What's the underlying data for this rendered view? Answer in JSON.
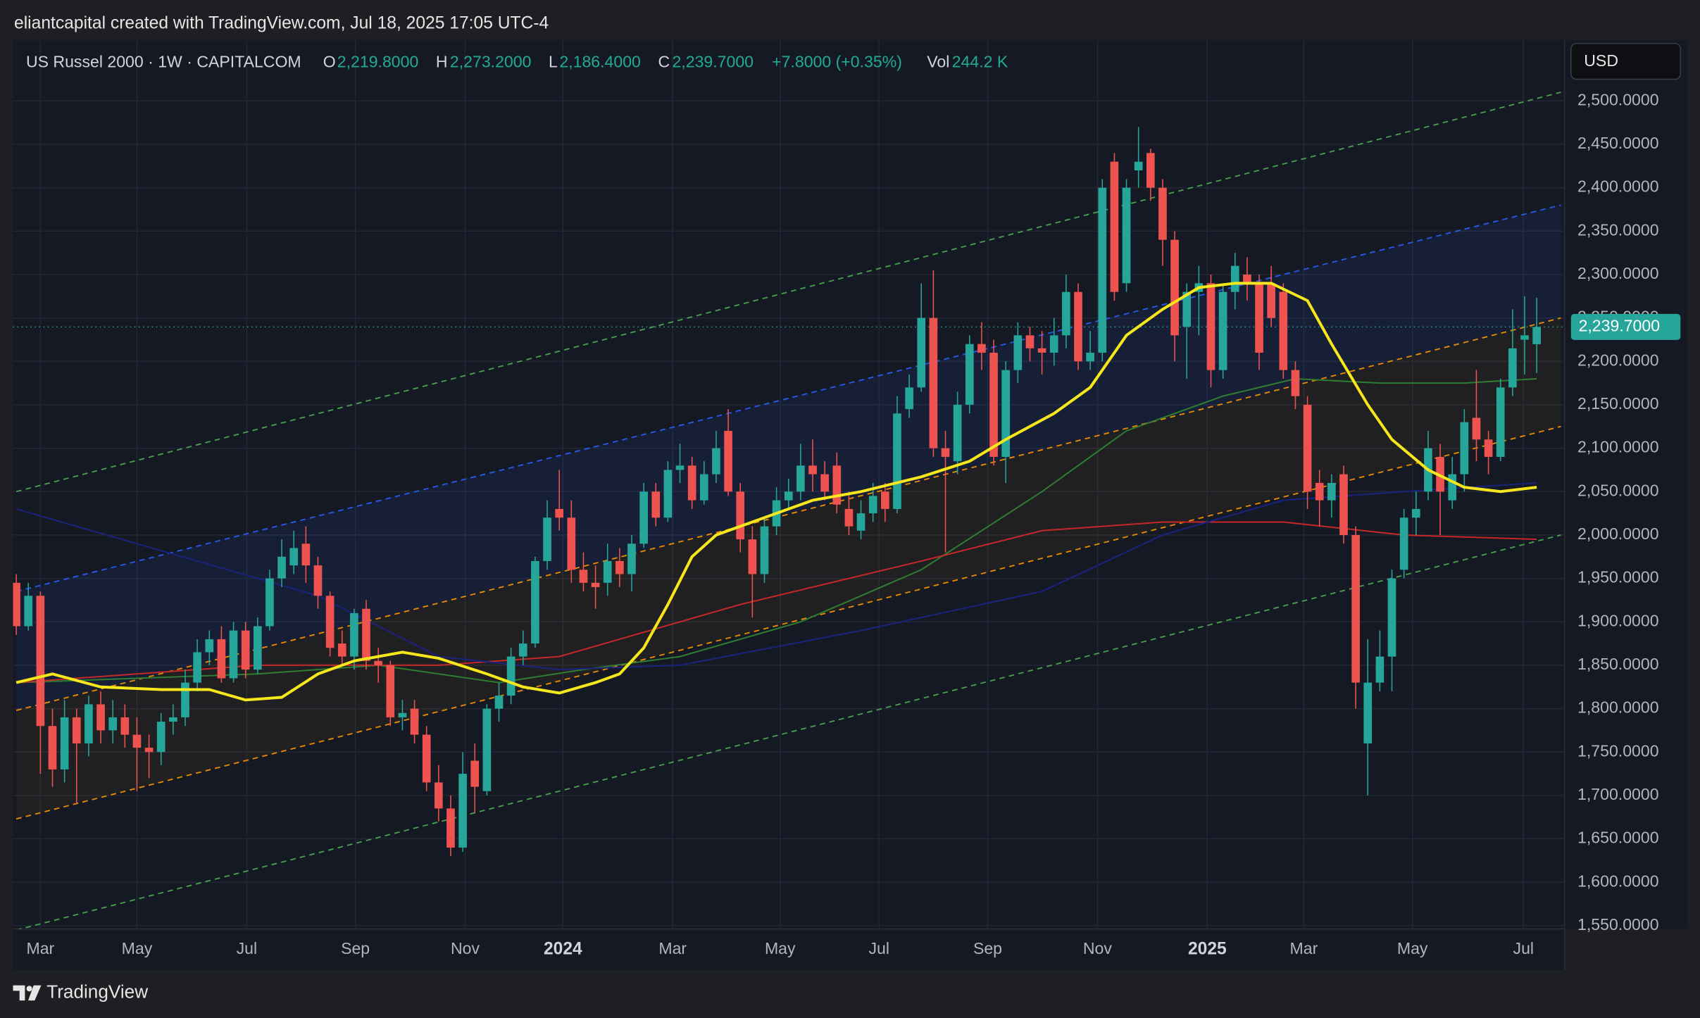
{
  "header": {
    "credit": "eliantcapital created with TradingView.com, Jul 18, 2025 17:05 UTC-4"
  },
  "legend": {
    "symbol": "US Russel 2000 · 1W · CAPITALCOM",
    "items": [
      {
        "key": "O",
        "value": "2,219.8000"
      },
      {
        "key": "H",
        "value": "2,273.2000"
      },
      {
        "key": "L",
        "value": "2,186.4000"
      },
      {
        "key": "C",
        "value": "2,239.7000"
      }
    ],
    "change": "+7.8000 (+0.35%)",
    "vol_key": "Vol",
    "vol": "244.2 K"
  },
  "currency": "USD",
  "footer": {
    "brand": "TradingView"
  },
  "chart_data": {
    "type": "candlestick",
    "up_color": "#26a69a",
    "down_color": "#ef5350",
    "xlim": [
      -0.27,
      128.3
    ],
    "ylim": [
      1546.2,
      2569.9
    ],
    "grid": true,
    "xticks": [
      {
        "value": 2.0,
        "label": "Mar"
      },
      {
        "value": 10.0,
        "label": "May"
      },
      {
        "value": 19.1,
        "label": "Jul"
      },
      {
        "value": 28.1,
        "label": "Sep"
      },
      {
        "value": 37.2,
        "label": "Nov"
      },
      {
        "value": 45.3,
        "label": "2024"
      },
      {
        "value": 54.4,
        "label": "Mar"
      },
      {
        "value": 63.3,
        "label": "May"
      },
      {
        "value": 71.5,
        "label": "Jul"
      },
      {
        "value": 80.5,
        "label": "Sep"
      },
      {
        "value": 89.6,
        "label": "Nov"
      },
      {
        "value": 98.7,
        "label": "2025"
      },
      {
        "value": 106.7,
        "label": "Mar"
      },
      {
        "value": 115.7,
        "label": "May"
      },
      {
        "value": 124.9,
        "label": "Jul"
      }
    ],
    "yticks": [
      {
        "value": 1550,
        "label": "1,550.0000"
      },
      {
        "value": 1600,
        "label": "1,600.0000"
      },
      {
        "value": 1650,
        "label": "1,650.0000"
      },
      {
        "value": 1700,
        "label": "1,700.0000"
      },
      {
        "value": 1750,
        "label": "1,750.0000"
      },
      {
        "value": 1800,
        "label": "1,800.0000"
      },
      {
        "value": 1850,
        "label": "1,850.0000"
      },
      {
        "value": 1900,
        "label": "1,900.0000"
      },
      {
        "value": 1950,
        "label": "1,950.0000"
      },
      {
        "value": 2000,
        "label": "2,000.0000"
      },
      {
        "value": 2050,
        "label": "2,050.0000"
      },
      {
        "value": 2100,
        "label": "2,100.0000"
      },
      {
        "value": 2150,
        "label": "2,150.0000"
      },
      {
        "value": 2200,
        "label": "2,200.0000"
      },
      {
        "value": 2250,
        "label": "2,250.0000"
      },
      {
        "value": 2300,
        "label": "2,300.0000"
      },
      {
        "value": 2350,
        "label": "2,350.0000"
      },
      {
        "value": 2400,
        "label": "2,400.0000"
      },
      {
        "value": 2450,
        "label": "2,450.0000"
      },
      {
        "value": 2500,
        "label": "2,500.0000"
      }
    ],
    "ohlc": {
      "open": [
        1945,
        1895,
        1930,
        1780,
        1730,
        1790,
        1760,
        1805,
        1775,
        1790,
        1770,
        1755,
        1750,
        1785,
        1790,
        1830,
        1865,
        1880,
        1835,
        1890,
        1845,
        1895,
        1950,
        1965,
        1990,
        1965,
        1930,
        1875,
        1860,
        1915,
        1855,
        1850,
        1790,
        1800,
        1770,
        1715,
        1685,
        1640,
        1740,
        1705,
        1800,
        1815,
        1860,
        1875,
        1970,
        2030,
        2020,
        1960,
        1945,
        1945,
        1970,
        1955,
        1990,
        2050,
        2020,
        2075,
        2080,
        2040,
        2070,
        2120,
        2050,
        1995,
        1955,
        2010,
        2040,
        2050,
        2080,
        2070,
        2080,
        2030,
        2005,
        2025,
        2050,
        2030,
        2145,
        2170,
        2250,
        2100,
        2085,
        2150,
        2220,
        2210,
        2090,
        2190,
        2230,
        2215,
        2210,
        2230,
        2280,
        2200,
        2210,
        2430,
        2290,
        2420,
        2440,
        2400,
        2340,
        2240,
        2280,
        2290,
        2190,
        2280,
        2300,
        2290,
        2290,
        2280,
        2190,
        2150,
        2060,
        2040,
        2070,
        2000,
        1760,
        1830,
        1860,
        1960,
        2020,
        2050,
        2090,
        2040,
        2070,
        2135,
        2110,
        2090,
        2170,
        2225,
        2219.8
      ],
      "high": [
        1955,
        1945,
        1935,
        1800,
        1810,
        1800,
        1815,
        1820,
        1810,
        1805,
        1790,
        1770,
        1795,
        1805,
        1845,
        1880,
        1890,
        1895,
        1900,
        1900,
        1905,
        1960,
        1995,
        2005,
        2010,
        1975,
        1935,
        1890,
        1915,
        1925,
        1870,
        1855,
        1810,
        1810,
        1780,
        1735,
        1700,
        1750,
        1760,
        1805,
        1830,
        1870,
        1890,
        1975,
        2040,
        2075,
        2040,
        1980,
        1965,
        1990,
        1985,
        2000,
        2060,
        2060,
        2085,
        2105,
        2090,
        2085,
        2120,
        2145,
        2060,
        2010,
        2020,
        2055,
        2065,
        2105,
        2110,
        2085,
        2095,
        2050,
        2040,
        2060,
        2060,
        2160,
        2185,
        2290,
        2305,
        2120,
        2165,
        2230,
        2245,
        2225,
        2200,
        2245,
        2240,
        2235,
        2250,
        2300,
        2290,
        2235,
        2410,
        2440,
        2410,
        2470,
        2445,
        2410,
        2350,
        2290,
        2310,
        2300,
        2290,
        2325,
        2320,
        2300,
        2310,
        2290,
        2200,
        2160,
        2075,
        2070,
        2080,
        2010,
        1880,
        1890,
        1960,
        2030,
        2050,
        2120,
        2105,
        2090,
        2145,
        2190,
        2120,
        2180,
        2260,
        2275,
        2273.2
      ],
      "low": [
        1885,
        1890,
        1725,
        1710,
        1715,
        1690,
        1745,
        1760,
        1760,
        1755,
        1705,
        1720,
        1735,
        1770,
        1780,
        1820,
        1850,
        1830,
        1830,
        1835,
        1840,
        1890,
        1940,
        1955,
        1945,
        1915,
        1860,
        1850,
        1845,
        1845,
        1830,
        1780,
        1775,
        1760,
        1705,
        1670,
        1630,
        1635,
        1680,
        1700,
        1785,
        1805,
        1850,
        1870,
        1960,
        2005,
        1945,
        1935,
        1915,
        1930,
        1940,
        1935,
        1985,
        2010,
        2015,
        2060,
        2030,
        2035,
        2060,
        2045,
        1980,
        1905,
        1945,
        2000,
        2030,
        2040,
        2050,
        2040,
        2025,
        2000,
        1995,
        2015,
        2015,
        2025,
        2135,
        2165,
        2090,
        1980,
        2070,
        2140,
        2190,
        2080,
        2060,
        2175,
        2200,
        2185,
        2195,
        2215,
        2190,
        2190,
        2200,
        2270,
        2280,
        2400,
        2385,
        2310,
        2200,
        2180,
        2230,
        2170,
        2180,
        2260,
        2270,
        2190,
        2240,
        2180,
        2145,
        2030,
        2010,
        2020,
        1990,
        1800,
        1700,
        1820,
        1820,
        1950,
        2000,
        2040,
        2000,
        2030,
        2050,
        2085,
        2070,
        2085,
        2160,
        2185,
        2186.4
      ],
      "close": [
        1895,
        1930,
        1780,
        1730,
        1790,
        1760,
        1805,
        1775,
        1790,
        1770,
        1755,
        1750,
        1785,
        1790,
        1830,
        1865,
        1880,
        1835,
        1890,
        1845,
        1895,
        1950,
        1975,
        1985,
        1965,
        1930,
        1870,
        1860,
        1910,
        1855,
        1850,
        1790,
        1795,
        1770,
        1715,
        1685,
        1640,
        1725,
        1710,
        1800,
        1815,
        1860,
        1875,
        1970,
        2020,
        2020,
        1960,
        1945,
        1940,
        1970,
        1955,
        1990,
        2050,
        2020,
        2075,
        2080,
        2040,
        2070,
        2100,
        2050,
        1995,
        1955,
        2010,
        2040,
        2050,
        2080,
        2070,
        2050,
        2035,
        2010,
        2025,
        2045,
        2030,
        2140,
        2170,
        2250,
        2100,
        2090,
        2150,
        2220,
        2210,
        2090,
        2190,
        2230,
        2215,
        2210,
        2230,
        2280,
        2200,
        2210,
        2400,
        2280,
        2400,
        2430,
        2400,
        2340,
        2230,
        2280,
        2290,
        2190,
        2280,
        2310,
        2290,
        2210,
        2250,
        2190,
        2160,
        2050,
        2040,
        2060,
        2000,
        1830,
        1830,
        1860,
        1950,
        2020,
        2030,
        2100,
        2050,
        2070,
        2130,
        2110,
        2090,
        2170,
        2215,
        2230,
        2239.7
      ]
    },
    "lines": [
      {
        "color": "#f5e71c",
        "x": [
          0,
          3,
          7,
          12,
          16,
          19,
          22,
          25,
          28,
          32,
          35,
          39,
          42,
          45,
          48,
          50,
          52,
          54,
          56,
          58,
          62,
          66,
          70,
          75,
          79,
          82,
          86,
          89,
          92,
          95,
          98,
          101,
          104,
          107,
          109,
          112,
          114,
          117,
          120,
          123,
          126
        ],
        "values": [
          1830,
          1840,
          1825,
          1822,
          1822,
          1810,
          1813,
          1840,
          1855,
          1865,
          1858,
          1840,
          1825,
          1818,
          1830,
          1840,
          1870,
          1920,
          1975,
          2000,
          2020,
          2040,
          2050,
          2067,
          2085,
          2110,
          2140,
          2170,
          2230,
          2260,
          2285,
          2290,
          2290,
          2270,
          2220,
          2150,
          2110,
          2075,
          2055,
          2050,
          2055
        ]
      },
      {
        "color": "#2e7d32",
        "x": [
          0,
          20,
          30,
          40,
          47,
          55,
          65,
          75,
          85,
          92,
          100,
          106,
          113,
          120,
          126
        ],
        "values": [
          1830,
          1840,
          1850,
          1830,
          1845,
          1860,
          1900,
          1960,
          2050,
          2120,
          2160,
          2180,
          2175,
          2175,
          2180
        ]
      },
      {
        "color": "#c62828",
        "x": [
          0,
          20,
          35,
          45,
          60,
          75,
          85,
          95,
          105,
          115,
          126
        ],
        "values": [
          1830,
          1850,
          1850,
          1860,
          1920,
          1970,
          2005,
          2015,
          2015,
          2000,
          1995
        ]
      },
      {
        "color": "#1a237e",
        "x": [
          0,
          15,
          25,
          35,
          45,
          55,
          70,
          85,
          95,
          105,
          115,
          126
        ],
        "values": [
          2030,
          1970,
          1930,
          1860,
          1845,
          1850,
          1890,
          1935,
          2000,
          2040,
          2050,
          2060
        ]
      }
    ],
    "channels": [
      {
        "color": "#4caf50",
        "x": [
          0,
          128
        ],
        "values": [
          2050,
          2510
        ]
      },
      {
        "color": "#2962ff",
        "x": [
          0,
          128
        ],
        "values": [
          1935,
          2380
        ]
      },
      {
        "color": "#ff9800",
        "x": [
          0,
          128
        ],
        "values": [
          1798,
          2250
        ]
      },
      {
        "color": "#ff9800",
        "x": [
          0,
          128
        ],
        "values": [
          1673,
          2125
        ]
      },
      {
        "color": "#4caf50",
        "x": [
          0,
          128
        ],
        "values": [
          1545,
          2000
        ]
      }
    ]
  }
}
